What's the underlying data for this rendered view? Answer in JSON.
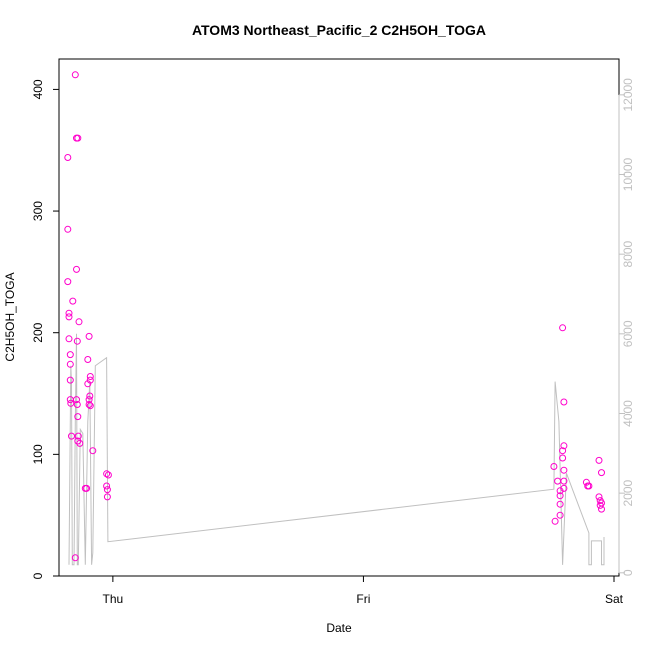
{
  "chart_data": {
    "type": "scatter",
    "title": "ATOM3 Northeast_Pacific_2 C2H5OH_TOGA",
    "xlabel": "Date",
    "ylabel": "C2H5OH_TOGA",
    "xlim": [
      -0.215,
      2.02
    ],
    "ylim": [
      0,
      425
    ],
    "y2lim": [
      -80,
      12900
    ],
    "x_ticks": [
      {
        "value": 0,
        "label": "Thu"
      },
      {
        "value": 1,
        "label": "Fri"
      },
      {
        "value": 2,
        "label": "Sat"
      }
    ],
    "y_ticks": [
      0,
      100,
      200,
      300,
      400
    ],
    "y2_ticks": [
      0,
      2000,
      4000,
      6000,
      8000,
      10000,
      12000
    ],
    "colors": {
      "points": "#ff00cc",
      "secondary_line": "#c0c0c0",
      "axes": "#000000",
      "secondary_axis": "#c0c0c0"
    },
    "series": [
      {
        "values": [
          [
            -0.18,
            344
          ],
          [
            -0.18,
            285
          ],
          [
            -0.18,
            242
          ],
          [
            -0.175,
            216
          ],
          [
            -0.175,
            213
          ],
          [
            -0.175,
            195
          ],
          [
            -0.17,
            182
          ],
          [
            -0.17,
            174
          ],
          [
            -0.17,
            161
          ],
          [
            -0.17,
            145
          ],
          [
            -0.168,
            142
          ],
          [
            -0.165,
            115
          ],
          [
            -0.16,
            226
          ],
          [
            -0.15,
            412
          ],
          [
            -0.145,
            360
          ],
          [
            -0.14,
            360
          ],
          [
            -0.145,
            252
          ],
          [
            -0.135,
            209
          ],
          [
            -0.142,
            193
          ],
          [
            -0.145,
            145
          ],
          [
            -0.142,
            141
          ],
          [
            -0.14,
            131
          ],
          [
            -0.138,
            115
          ],
          [
            -0.14,
            111
          ],
          [
            -0.132,
            109
          ],
          [
            -0.15,
            15
          ],
          [
            -0.11,
            72
          ],
          [
            -0.105,
            72
          ],
          [
            -0.095,
            197
          ],
          [
            -0.1,
            178
          ],
          [
            -0.1,
            158
          ],
          [
            -0.09,
            164
          ],
          [
            -0.09,
            161
          ],
          [
            -0.092,
            148
          ],
          [
            -0.095,
            145
          ],
          [
            -0.095,
            141
          ],
          [
            -0.09,
            140
          ],
          [
            -0.08,
            103
          ],
          [
            -0.025,
            84
          ],
          [
            -0.018,
            83
          ],
          [
            -0.025,
            74
          ],
          [
            -0.022,
            71
          ],
          [
            -0.022,
            65
          ],
          [
            1.76,
            90
          ],
          [
            1.765,
            45
          ],
          [
            1.775,
            78
          ],
          [
            1.785,
            70
          ],
          [
            1.785,
            66
          ],
          [
            1.785,
            59
          ],
          [
            1.785,
            50
          ],
          [
            1.795,
            204
          ],
          [
            1.8,
            143
          ],
          [
            1.8,
            107
          ],
          [
            1.795,
            103
          ],
          [
            1.795,
            97
          ],
          [
            1.8,
            87
          ],
          [
            1.8,
            78
          ],
          [
            1.8,
            72
          ],
          [
            1.89,
            77
          ],
          [
            1.895,
            74
          ],
          [
            1.9,
            74
          ],
          [
            1.94,
            95
          ],
          [
            1.94,
            65
          ],
          [
            1.945,
            62
          ],
          [
            1.945,
            58
          ],
          [
            1.95,
            85
          ],
          [
            1.95,
            60
          ],
          [
            1.95,
            55
          ]
        ]
      },
      {
        "axis": "right",
        "values": [
          [
            -0.175,
            200
          ],
          [
            -0.168,
            5200
          ],
          [
            -0.165,
            4800
          ],
          [
            -0.162,
            200
          ],
          [
            -0.155,
            200
          ],
          [
            -0.15,
            3800
          ],
          [
            -0.145,
            6000
          ],
          [
            -0.142,
            200
          ],
          [
            -0.138,
            200
          ],
          [
            -0.13,
            3600
          ],
          [
            -0.12,
            3500
          ],
          [
            -0.11,
            200
          ],
          [
            -0.1,
            3800
          ],
          [
            -0.092,
            4800
          ],
          [
            -0.085,
            200
          ],
          [
            -0.08,
            500
          ],
          [
            -0.07,
            5200
          ],
          [
            -0.025,
            5400
          ],
          [
            -0.02,
            780
          ],
          [
            1.76,
            2100
          ],
          [
            1.765,
            4800
          ],
          [
            1.78,
            3800
          ],
          [
            1.795,
            200
          ],
          [
            1.81,
            2500
          ],
          [
            1.9,
            1000
          ],
          [
            1.9,
            200
          ],
          [
            1.91,
            200
          ],
          [
            1.91,
            800
          ],
          [
            1.95,
            800
          ],
          [
            1.95,
            200
          ],
          [
            1.96,
            200
          ],
          [
            1.96,
            900
          ]
        ]
      }
    ]
  }
}
